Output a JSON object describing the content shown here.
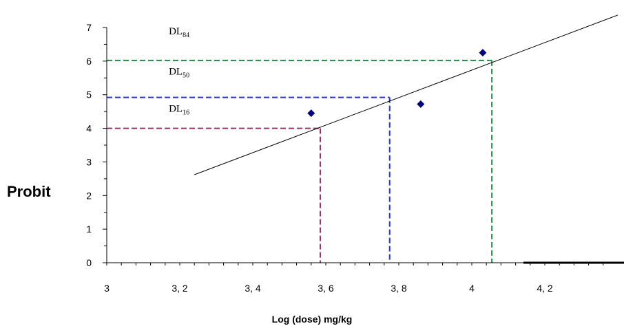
{
  "chart_data": {
    "type": "scatter",
    "xlabel": "Log (dose) mg/kg",
    "ylabel": "Probit",
    "xlim": [
      3.0,
      4.42
    ],
    "ylim": [
      0,
      7
    ],
    "x_ticks": [
      {
        "value": 3.0,
        "label": "3"
      },
      {
        "value": 3.2,
        "label": "3, 2"
      },
      {
        "value": 3.4,
        "label": "3, 4"
      },
      {
        "value": 3.6,
        "label": "3, 6"
      },
      {
        "value": 3.8,
        "label": "3, 8"
      },
      {
        "value": 4.0,
        "label": "4"
      },
      {
        "value": 4.2,
        "label": "4, 2"
      }
    ],
    "y_ticks": [
      {
        "value": 0,
        "label": "0"
      },
      {
        "value": 1,
        "label": "1"
      },
      {
        "value": 2,
        "label": "2"
      },
      {
        "value": 3,
        "label": "3"
      },
      {
        "value": 4,
        "label": "4"
      },
      {
        "value": 5,
        "label": "5"
      },
      {
        "value": 6,
        "label": "6"
      },
      {
        "value": 7,
        "label": "7"
      }
    ],
    "points": [
      {
        "x": 3.56,
        "y": 4.45
      },
      {
        "x": 3.86,
        "y": 4.72
      },
      {
        "x": 4.03,
        "y": 6.25
      }
    ],
    "regression_line": {
      "x1": 3.24,
      "y1": 2.62,
      "x2": 4.4,
      "y2": 7.37
    },
    "dl_labels": [
      {
        "base": "DL",
        "sub": "84",
        "x": 3.17,
        "y": 6.9
      },
      {
        "base": "DL",
        "sub": "50",
        "x": 3.17,
        "y": 5.7
      },
      {
        "base": "DL",
        "sub": "16",
        "x": 3.17,
        "y": 4.6
      }
    ],
    "reference_lines": [
      {
        "probit": 4.0,
        "logdose": 3.585,
        "color": "#993366"
      },
      {
        "probit": 4.92,
        "logdose": 3.775,
        "color": "#2233dd"
      },
      {
        "probit": 6.02,
        "logdose": 4.055,
        "color": "#228844"
      }
    ],
    "marker_color": "#000080",
    "grid": false
  }
}
